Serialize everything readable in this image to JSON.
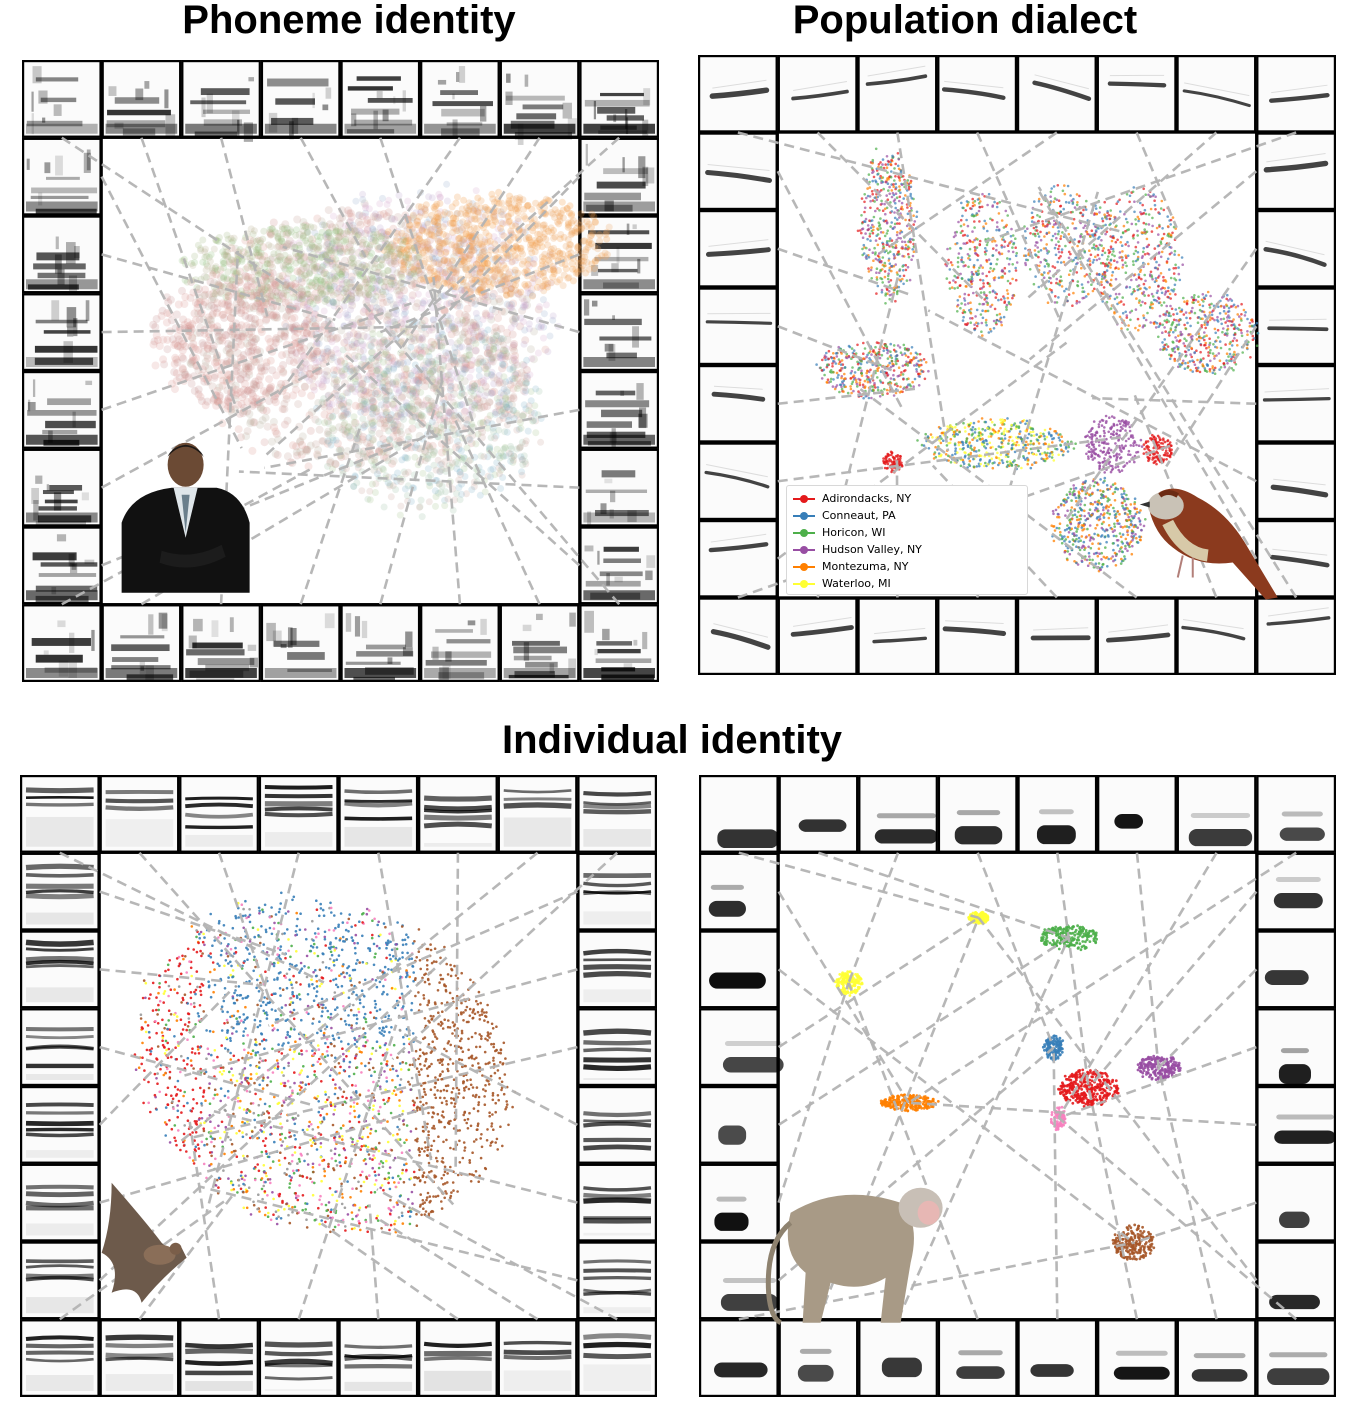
{
  "titles": {
    "phoneme": "Phoneme identity",
    "dialect": "Population dialect",
    "individual": "Individual identity"
  },
  "panels": [
    {
      "id": "phoneme",
      "species": "human-speaker",
      "pictogram": "obama-illustration"
    },
    {
      "id": "dialect",
      "species": "swamp-sparrow",
      "pictogram": "sparrow-illustration"
    },
    {
      "id": "bat",
      "species": "fruit-bat",
      "pictogram": "bat-illustration"
    },
    {
      "id": "macaque",
      "species": "rhesus-macaque",
      "pictogram": "macaque-illustration"
    }
  ],
  "legend": {
    "entries": [
      {
        "label": "Adirondacks, NY",
        "color": "#e41a1c"
      },
      {
        "label": "Conneaut, PA",
        "color": "#377eb8"
      },
      {
        "label": "Horicon, WI",
        "color": "#4daf4a"
      },
      {
        "label": "Hudson Valley, NY",
        "color": "#984ea3"
      },
      {
        "label": "Montezuma, NY",
        "color": "#ff7f00"
      },
      {
        "label": "Waterloo, MI",
        "color": "#ffff33"
      }
    ]
  },
  "colors": {
    "palette": [
      "#e41a1c",
      "#377eb8",
      "#4daf4a",
      "#984ea3",
      "#ff7f00",
      "#ffff33",
      "#a65628",
      "#f781bf",
      "#999999"
    ],
    "connector": "#b4b4b4",
    "frame": "#000000"
  }
}
